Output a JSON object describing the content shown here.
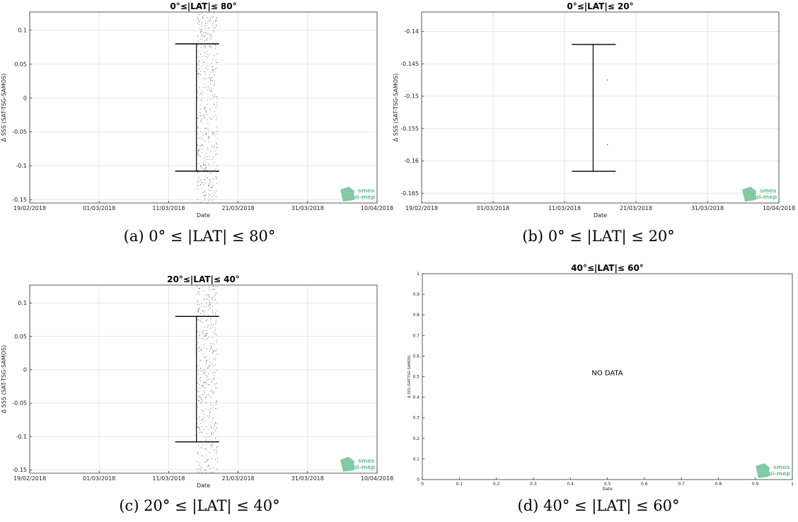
{
  "figure": {
    "captions": [
      "(a) 0° ≤ |LAT| ≤ 80°",
      "(b) 0° ≤ |LAT| ≤ 20°",
      "(c) 20° ≤ |LAT| ≤ 40°",
      "(d) 40° ≤ |LAT| ≤ 60°"
    ],
    "logo_text": [
      "smos",
      "pi-mep"
    ],
    "colors": {
      "errorbar": "#000000",
      "points": "#555555",
      "grid": "#e6e6e6",
      "axis": "#333333",
      "logo": "#6cbf96"
    }
  },
  "chart_data": [
    {
      "type": "scatter",
      "title": "0°≤|LAT|≤ 80°",
      "xlabel": "Date",
      "ylabel": "Δ SSS (SAT-TSG-SAMOS)",
      "x_ticks": [
        "19/02/2018",
        "01/03/2018",
        "11/03/2018",
        "21/03/2018",
        "31/03/2018",
        "10/04/2018"
      ],
      "xlim": [
        "2018-02-19",
        "2018-04-10"
      ],
      "ylim": [
        -0.155,
        0.127
      ],
      "y_ticks": [
        -0.15,
        -0.1,
        -0.05,
        0,
        0.05,
        0.1
      ],
      "y_tick_labels": [
        "-0.15",
        "-0.1",
        "-0.05",
        "0",
        "0.05",
        "0.1"
      ],
      "grid": true,
      "errorbar": {
        "x": "2018-03-15",
        "low": -0.108,
        "high": 0.08
      },
      "points_x_range": [
        "2018-03-15",
        "2018-03-18"
      ],
      "no_data": ""
    },
    {
      "type": "scatter",
      "title": "0°≤|LAT|≤ 20°",
      "xlabel": "Date",
      "ylabel": "Δ SSS (SAT-TSG-SAMOS)",
      "x_ticks": [
        "19/02/2018",
        "01/03/2018",
        "11/03/2018",
        "21/03/2018",
        "31/03/2018",
        "10/04/2018"
      ],
      "xlim": [
        "2018-02-19",
        "2018-04-10"
      ],
      "ylim": [
        -0.1665,
        -0.137
      ],
      "y_ticks": [
        -0.165,
        -0.16,
        -0.155,
        -0.15,
        -0.145,
        -0.14
      ],
      "y_tick_labels": [
        "-0.165",
        "-0.16",
        "-0.155",
        "-0.15",
        "-0.145",
        "-0.14"
      ],
      "grid": true,
      "errorbar": {
        "x": "2018-03-15",
        "low": -0.1616,
        "high": -0.142
      },
      "points": [
        {
          "x": "2018-03-17",
          "y": -0.1475
        },
        {
          "x": "2018-03-17",
          "y": -0.1575
        }
      ],
      "no_data": ""
    },
    {
      "type": "scatter",
      "title": "20°≤|LAT|≤ 40°",
      "xlabel": "Date",
      "ylabel": "Δ SSS (SAT-TSG-SAMOS)",
      "x_ticks": [
        "19/02/2018",
        "01/03/2018",
        "11/03/2018",
        "21/03/2018",
        "31/03/2018",
        "10/04/2018"
      ],
      "xlim": [
        "2018-02-19",
        "2018-04-10"
      ],
      "ylim": [
        -0.155,
        0.127
      ],
      "y_ticks": [
        -0.15,
        -0.1,
        -0.05,
        0,
        0.05,
        0.1
      ],
      "y_tick_labels": [
        "-0.15",
        "-0.1",
        "-0.05",
        "0",
        "0.05",
        "0.1"
      ],
      "grid": true,
      "errorbar": {
        "x": "2018-03-15",
        "low": -0.108,
        "high": 0.08
      },
      "points_x_range": [
        "2018-03-15",
        "2018-03-18"
      ],
      "no_data": ""
    },
    {
      "type": "scatter",
      "title": "40°≤|LAT|≤ 60°",
      "xlabel": "Date",
      "ylabel": "Δ SSS (SAT-TSG-SAMOS)",
      "x_ticks": [
        0,
        0.1,
        0.2,
        0.3,
        0.4,
        0.5,
        0.6,
        0.7,
        0.8,
        0.9,
        1
      ],
      "x_tick_labels": [
        "0",
        "0.1",
        "0.2",
        "0.3",
        "0.4",
        "0.5",
        "0.6",
        "0.7",
        "0.8",
        "0.9",
        "1"
      ],
      "xlim": [
        0,
        1
      ],
      "ylim": [
        0,
        1
      ],
      "y_ticks": [
        0,
        0.1,
        0.2,
        0.3,
        0.4,
        0.5,
        0.6,
        0.7,
        0.8,
        0.9,
        1
      ],
      "y_tick_labels": [
        "0",
        "0.1",
        "0.2",
        "0.3",
        "0.4",
        "0.5",
        "0.6",
        "0.7",
        "0.8",
        "0.9",
        "1"
      ],
      "grid": false,
      "no_data": "NO DATA"
    }
  ]
}
